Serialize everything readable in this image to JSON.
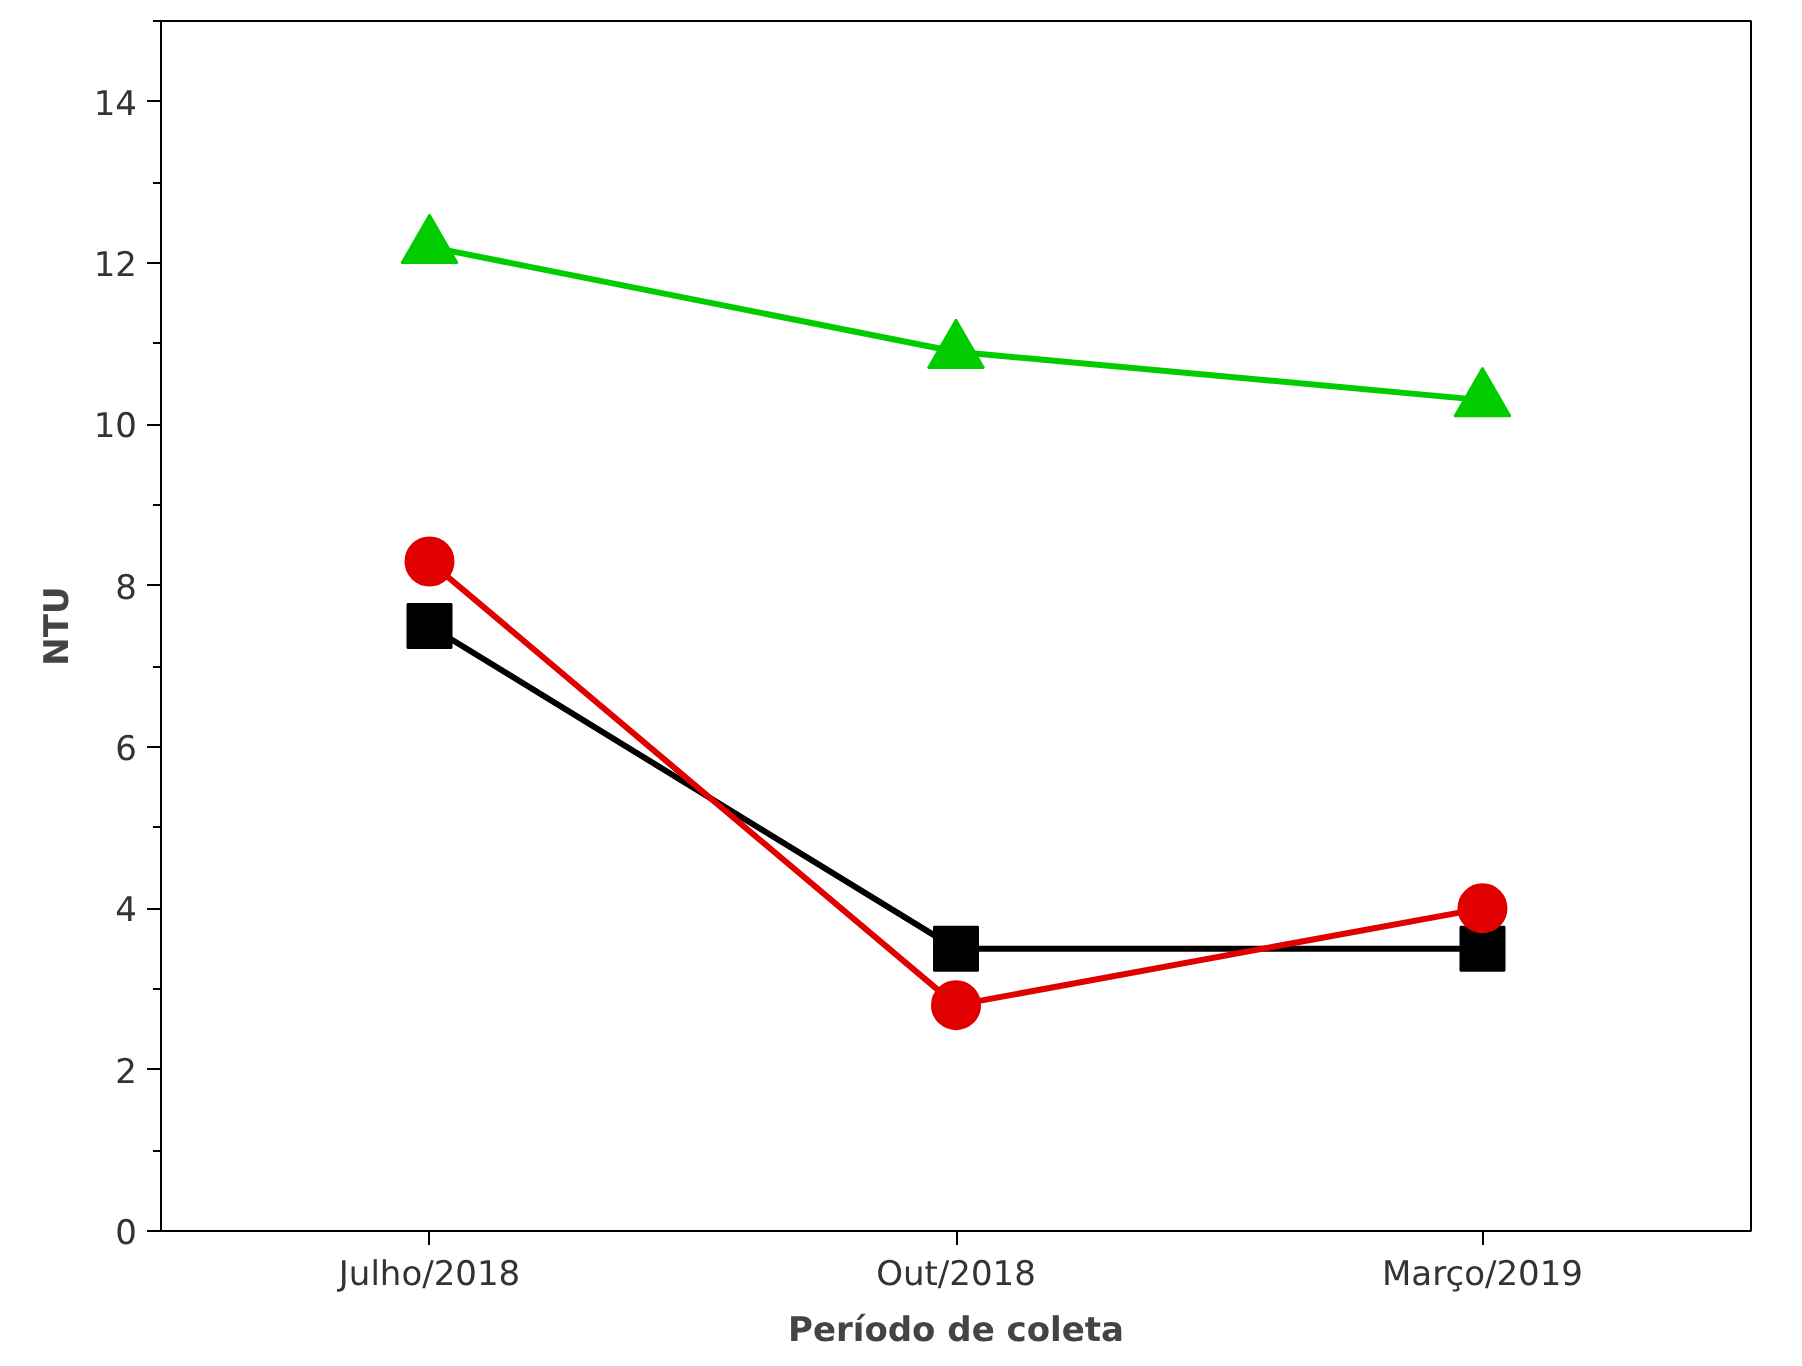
{
  "chart_data": {
    "type": "line",
    "xlabel": "Período de coleta",
    "ylabel": "NTU",
    "categories": [
      "Julho/2018",
      "Out/2018",
      "Março/2019"
    ],
    "series": [
      {
        "color": "#000000",
        "marker": "square",
        "values": [
          7.5,
          3.5,
          3.5
        ]
      },
      {
        "color": "#e00000",
        "marker": "circle",
        "values": [
          8.3,
          2.8,
          4.0
        ]
      },
      {
        "color": "#00cc00",
        "marker": "triangle",
        "values": [
          12.2,
          10.9,
          10.3
        ]
      }
    ],
    "ylim": [
      0,
      15
    ],
    "yticks": [
      0,
      2,
      4,
      6,
      8,
      10,
      12,
      14
    ],
    "grid": false
  }
}
